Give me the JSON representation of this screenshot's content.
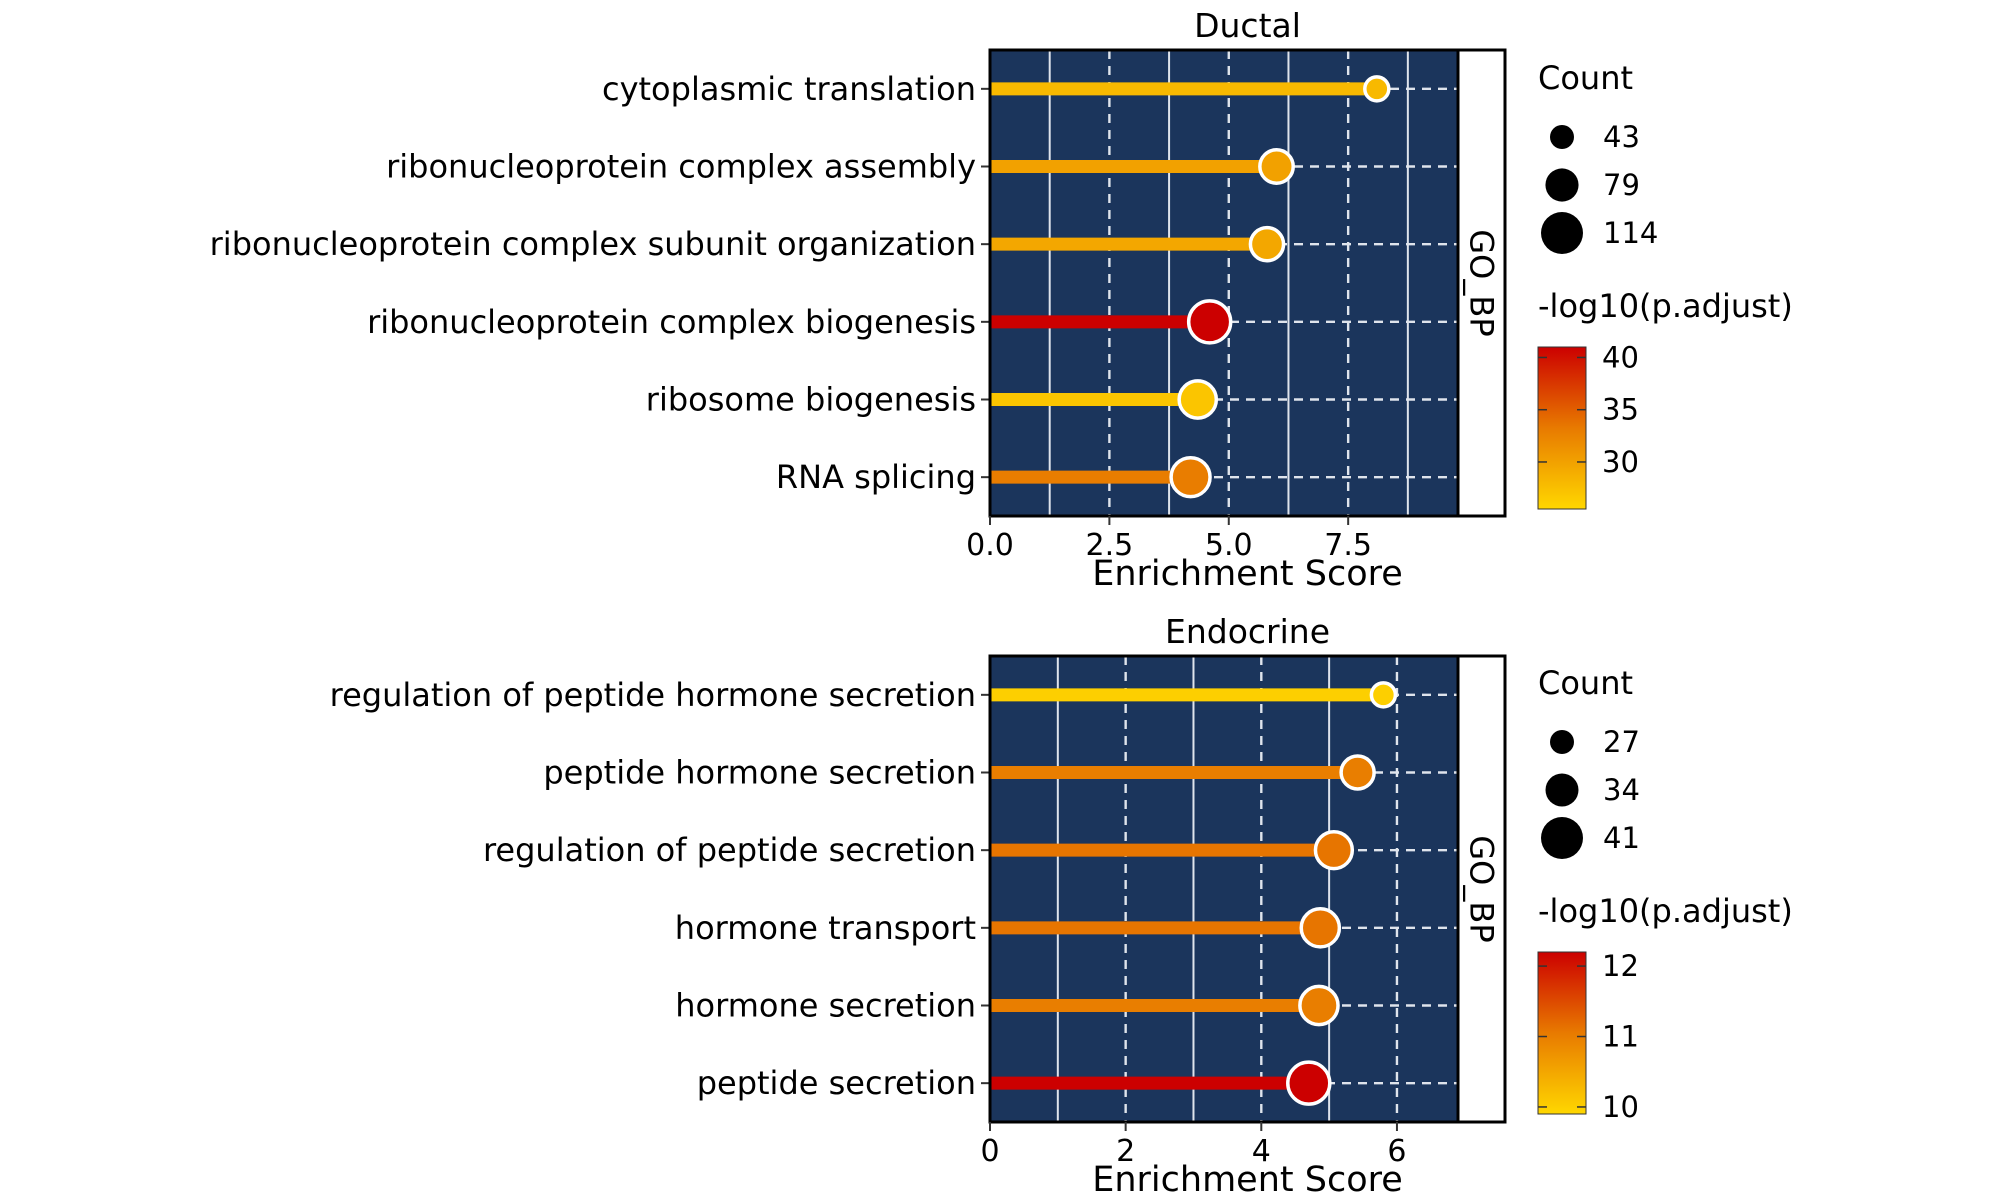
{
  "chart_data": [
    {
      "type": "lollipop",
      "title": "Ductal",
      "facet_label": "GO_BP",
      "xlabel": "Enrichment Score",
      "ylabel": "",
      "xlim": [
        0,
        9.8
      ],
      "xticks": [
        "0.0",
        "2.5",
        "5.0",
        "7.5"
      ],
      "xtick_values": [
        0,
        2.5,
        5.0,
        7.5
      ],
      "grid": true,
      "categories": [
        "cytoplasmic translation",
        "ribonucleoprotein complex assembly",
        "ribonucleoprotein complex subunit organization",
        "ribonucleoprotein complex biogenesis",
        "ribosome biogenesis",
        "RNA splicing"
      ],
      "enrichment_score": [
        8.1,
        6.0,
        5.8,
        4.6,
        4.35,
        4.2
      ],
      "count": [
        43,
        80,
        79,
        114,
        95,
        102
      ],
      "neg_log10_padj": [
        28,
        30,
        29.5,
        41,
        27,
        33
      ],
      "size_legend": {
        "title": "Count",
        "values": [
          43,
          79,
          114
        ]
      },
      "color_legend": {
        "title": "-log10(p.adjust)",
        "ticks": [
          40,
          35,
          30
        ],
        "range": [
          25.5,
          41
        ],
        "low_color": "#ffd700",
        "mid_color": "#e87a00",
        "high_color": "#cc0000"
      }
    },
    {
      "type": "lollipop",
      "title": "Endocrine",
      "facet_label": "GO_BP",
      "xlabel": "Enrichment Score",
      "ylabel": "",
      "xlim": [
        0,
        6.9
      ],
      "xticks": [
        "0",
        "2",
        "4",
        "6"
      ],
      "xtick_values": [
        0,
        2,
        4,
        6
      ],
      "grid": true,
      "categories": [
        "regulation of peptide hormone secretion",
        "peptide hormone secretion",
        "regulation of peptide secretion",
        "hormone transport",
        "hormone secretion",
        "peptide secretion"
      ],
      "enrichment_score": [
        5.8,
        5.42,
        5.07,
        4.87,
        4.85,
        4.7
      ],
      "count": [
        27,
        34,
        37,
        38,
        38,
        41
      ],
      "neg_log10_padj": [
        10,
        11,
        11.1,
        11.1,
        11,
        12.2
      ],
      "size_legend": {
        "title": "Count",
        "values": [
          27,
          34,
          41
        ]
      },
      "color_legend": {
        "title": "-log10(p.adjust)",
        "ticks": [
          12,
          11,
          10
        ],
        "range": [
          9.9,
          12.2
        ],
        "low_color": "#ffd700",
        "mid_color": "#e87a00",
        "high_color": "#cc0000"
      }
    }
  ]
}
